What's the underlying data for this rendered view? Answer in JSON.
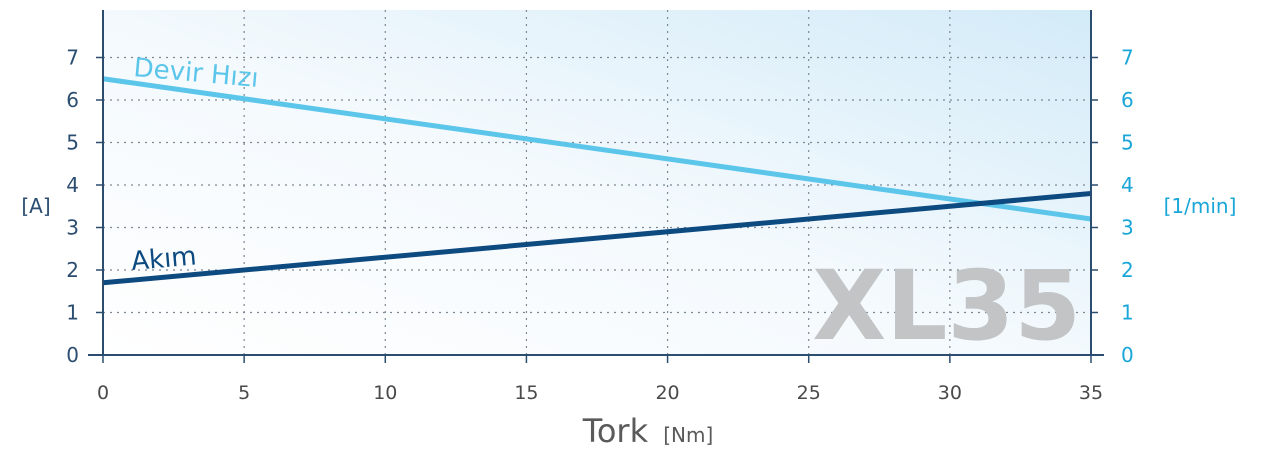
{
  "chart_data": {
    "type": "line",
    "x_ticks": [
      "0",
      "5",
      "10",
      "15",
      "20",
      "25",
      "30",
      "35"
    ],
    "xlim": [
      0,
      35
    ],
    "ylim": [
      0,
      8
    ],
    "y_ticks_left": [
      "0",
      "1",
      "2",
      "3",
      "4",
      "5",
      "6",
      "7"
    ],
    "y_ticks_right": [
      "0",
      "1",
      "2",
      "3",
      "4",
      "5",
      "6",
      "7"
    ],
    "xlabel": "Tork",
    "xlabel_unit": "[Nm]",
    "ylabel_left": "[A]",
    "ylabel_right": "[1/min]",
    "watermark": "XL35",
    "grid": true,
    "series": [
      {
        "name": "Devir Hızı",
        "axis": "right",
        "color": "#5cc6ea",
        "x": [
          0,
          35
        ],
        "y": [
          6.5,
          3.2
        ]
      },
      {
        "name": "Akım",
        "axis": "left",
        "color": "#0d4a80",
        "x": [
          0,
          35
        ],
        "y": [
          1.7,
          3.8
        ]
      }
    ]
  }
}
